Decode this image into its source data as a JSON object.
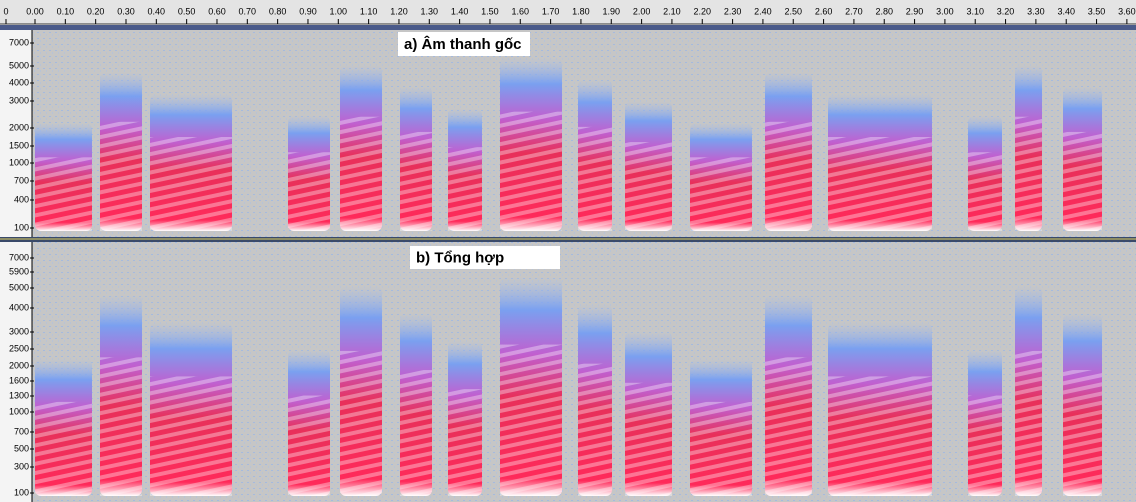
{
  "ruler": {
    "labels": [
      "0",
      "0.00",
      "0.10",
      "0.20",
      "0.30",
      "0.40",
      "0.50",
      "0.60",
      "0.70",
      "0.80",
      "0.90",
      "1.00",
      "1.10",
      "1.20",
      "1.30",
      "1.40",
      "1.50",
      "1.60",
      "1.70",
      "1.80",
      "1.90",
      "2.00",
      "2.10",
      "2.20",
      "2.30",
      "2.40",
      "2.50",
      "2.60",
      "2.70",
      "2.80",
      "2.90",
      "3.00",
      "3.10",
      "3.20",
      "3.30",
      "3.40",
      "3.50",
      "3.60"
    ]
  },
  "panels": [
    {
      "title": "a) Âm thanh gốc",
      "freq_labels": [
        "7000",
        "5000",
        "4000",
        "3000",
        "2000",
        "1500",
        "1000",
        "700",
        "400",
        "100"
      ]
    },
    {
      "title": "b) Tổng hợp",
      "freq_labels": [
        "7000",
        "5900",
        "5000",
        "4000",
        "3000",
        "2500",
        "2000",
        "1600",
        "1300",
        "1000",
        "700",
        "500",
        "300",
        "100"
      ]
    }
  ]
}
